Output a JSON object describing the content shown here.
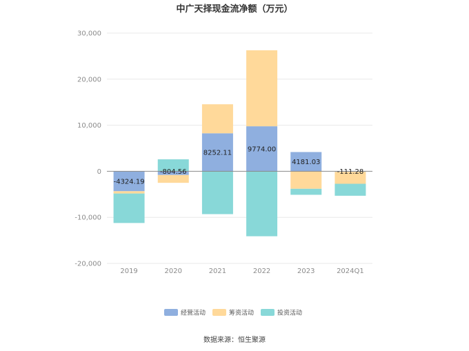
{
  "chart_data": {
    "type": "bar",
    "stacked": true,
    "title": "中广天择现金流净额（万元）",
    "categories": [
      "2019",
      "2020",
      "2021",
      "2022",
      "2023",
      "2024Q1"
    ],
    "series": [
      {
        "name": "经营活动",
        "color": "#8fafdf",
        "values": [
          -4324.19,
          -804.56,
          8252.11,
          9774.0,
          4181.03,
          -111.28
        ]
      },
      {
        "name": "筹资活动",
        "color": "#ffd99a",
        "values": [
          -500,
          -1700,
          6300,
          16500,
          -3800,
          -2600
        ]
      },
      {
        "name": "投资活动",
        "color": "#88d8d8",
        "values": [
          -6400,
          2600,
          -9300,
          -14100,
          -1300,
          -2600
        ]
      }
    ],
    "data_labels": [
      "-4324.19",
      "-804.56",
      "8252.11",
      "9774.00",
      "4181.03",
      "-111.28"
    ],
    "ylim": [
      -20000,
      30000
    ],
    "yticks": [
      30000,
      20000,
      10000,
      0,
      -10000,
      -20000
    ],
    "ytick_labels": [
      "30,000",
      "20,000",
      "10,000",
      "0",
      "-10,000",
      "-20,000"
    ],
    "grid": true,
    "legend_position": "bottom"
  },
  "source": "数据来源：恒生聚源"
}
